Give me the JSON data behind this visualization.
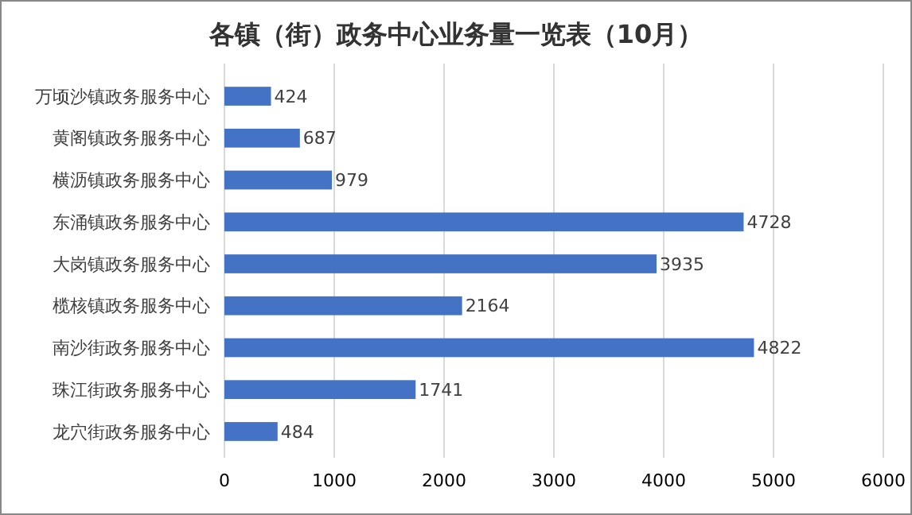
{
  "chart_data": {
    "type": "bar",
    "orientation": "horizontal",
    "title": "各镇（街）政务中心业务量一览表（10月）",
    "categories": [
      "万顷沙镇政务服务中心",
      "黄阁镇政务服务中心",
      "横沥镇政务服务中心",
      "东涌镇政务服务中心",
      "大岗镇政务服务中心",
      "榄核镇政务服务中心",
      "南沙街政务服务中心",
      "珠江街政务服务中心",
      "龙穴街政务服务中心"
    ],
    "values": [
      424,
      687,
      979,
      4728,
      3935,
      2164,
      4822,
      1741,
      484
    ],
    "color": "#4472c4",
    "xlim": [
      0,
      6000
    ],
    "xticks": [
      0,
      1000,
      2000,
      3000,
      4000,
      5000,
      6000
    ],
    "grid": "x",
    "data_labels": true
  }
}
